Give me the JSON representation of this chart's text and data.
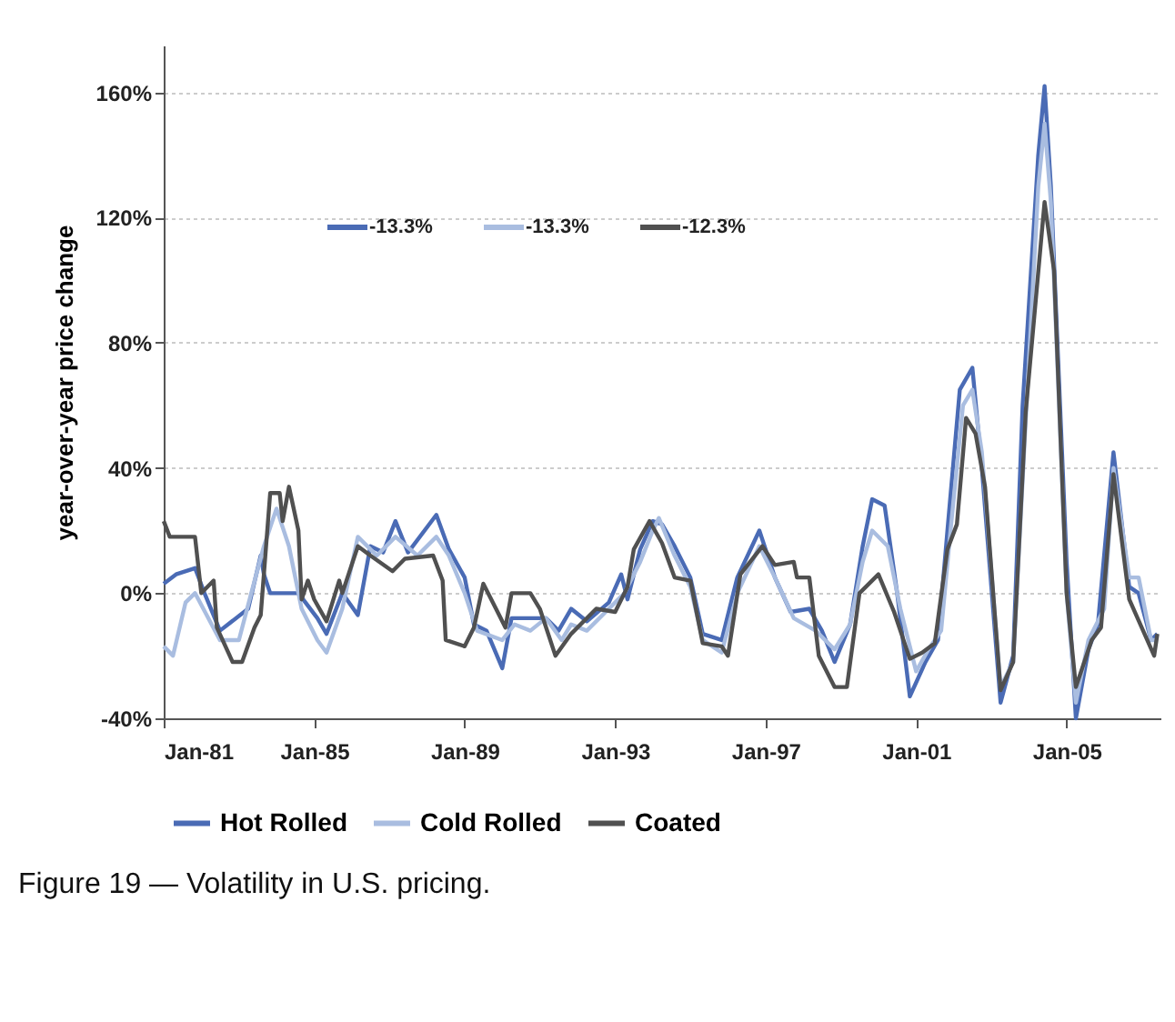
{
  "chart_data": {
    "type": "line",
    "title": "Figure 19 — Volatility in U.S. pricing.",
    "ylabel": "year-over-year price change",
    "xlim": [
      "1981-01",
      "2007-07"
    ],
    "ylim": [
      -40,
      175
    ],
    "xticks": [
      {
        "value": "1981-01",
        "label": "Jan-81"
      },
      {
        "value": "1985-01",
        "label": "Jan-85"
      },
      {
        "value": "1989-01",
        "label": "Jan-89"
      },
      {
        "value": "1993-01",
        "label": "Jan-93"
      },
      {
        "value": "1997-01",
        "label": "Jan-97"
      },
      {
        "value": "2001-01",
        "label": "Jan-01"
      },
      {
        "value": "2005-01",
        "label": "Jan-05"
      }
    ],
    "yticks": [
      {
        "value": -40,
        "label": "-40%"
      },
      {
        "value": 0,
        "label": "0%"
      },
      {
        "value": 40,
        "label": "40%"
      },
      {
        "value": 80,
        "label": "80%"
      },
      {
        "value": 120,
        "label": "120%"
      },
      {
        "value": 160,
        "label": "160%"
      }
    ],
    "grid": "y",
    "legend": "bottom",
    "line_style": "solid",
    "marker": "none",
    "annotations": [
      "-13.3%",
      "-13.3%",
      "-12.3%"
    ],
    "series": [
      {
        "name": "Hot Rolled",
        "color": "#4a6bb5",
        "x": [
          "1981-01",
          "1981-05",
          "1981-11",
          "1982-02",
          "1982-07",
          "1983-04",
          "1983-08",
          "1983-09",
          "1983-11",
          "1984-08",
          "1985-02",
          "1985-05",
          "1985-10",
          "1986-03",
          "1986-07",
          "1986-11",
          "1987-03",
          "1987-07",
          "1988-04",
          "1988-08",
          "1989-01",
          "1989-04",
          "1989-08",
          "1990-01",
          "1990-04",
          "1990-10",
          "1991-03",
          "1991-07",
          "1991-11",
          "1992-04",
          "1992-11",
          "1993-03",
          "1993-05",
          "1993-09",
          "1994-01",
          "1994-04",
          "1994-08",
          "1995-01",
          "1995-05",
          "1995-11",
          "1996-04",
          "1996-11",
          "1997-04",
          "1997-09",
          "1998-03",
          "1998-07",
          "1998-11",
          "1999-04",
          "1999-08",
          "1999-11",
          "2000-03",
          "2000-07",
          "2000-11",
          "2001-04",
          "2001-08",
          "2001-11",
          "2002-03",
          "2002-07",
          "2002-10",
          "2003-04",
          "2003-08",
          "2003-11",
          "2004-04",
          "2004-06",
          "2004-08",
          "2005-01",
          "2005-04",
          "2005-08",
          "2005-11",
          "2006-04",
          "2006-09",
          "2006-12",
          "2007-04",
          "2007-06"
        ],
        "values": [
          3,
          6,
          8,
          0,
          -12,
          -5,
          12,
          6,
          0,
          0,
          -8,
          -13,
          0,
          -7,
          15,
          13,
          23,
          13,
          25,
          14,
          5,
          -10,
          -12,
          -24,
          -8,
          -8,
          -8,
          -12,
          -5,
          -9,
          -3,
          6,
          -2,
          14,
          23,
          22,
          15,
          5,
          -13,
          -15,
          5,
          20,
          5,
          -6,
          -5,
          -12,
          -22,
          -10,
          15,
          30,
          28,
          0,
          -33,
          -22,
          -15,
          20,
          65,
          72,
          40,
          -35,
          -20,
          60,
          140,
          162,
          130,
          10,
          -40,
          -18,
          -10,
          45,
          2,
          0,
          -15,
          -13
        ]
      },
      {
        "name": "Cold Rolled",
        "color": "#a9bde0",
        "x": [
          "1981-01",
          "1981-04",
          "1981-08",
          "1981-11",
          "1982-07",
          "1983-01",
          "1983-05",
          "1983-09",
          "1984-01",
          "1984-05",
          "1984-09",
          "1985-02",
          "1985-05",
          "1985-10",
          "1986-03",
          "1986-09",
          "1987-03",
          "1987-10",
          "1988-04",
          "1988-08",
          "1989-01",
          "1989-05",
          "1990-01",
          "1990-05",
          "1990-10",
          "1991-03",
          "1991-08",
          "1991-11",
          "1992-04",
          "1992-11",
          "1993-04",
          "1993-09",
          "1994-01",
          "1994-03",
          "1994-08",
          "1995-01",
          "1995-05",
          "1995-11",
          "1996-04",
          "1996-11",
          "1997-04",
          "1997-10",
          "1998-05",
          "1998-11",
          "1999-04",
          "1999-08",
          "1999-11",
          "2000-04",
          "2000-08",
          "2001-01",
          "2001-05",
          "2001-09",
          "2001-12",
          "2002-04",
          "2002-07",
          "2002-10",
          "2003-04",
          "2003-08",
          "2003-12",
          "2004-04",
          "2004-06",
          "2004-08",
          "2005-01",
          "2005-04",
          "2005-08",
          "2006-01",
          "2006-04",
          "2006-09",
          "2006-12",
          "2007-04",
          "2007-06"
        ],
        "values": [
          -17,
          -20,
          -3,
          0,
          -15,
          -15,
          0,
          15,
          27,
          15,
          -5,
          -15,
          -19,
          -5,
          18,
          12,
          18,
          12,
          18,
          12,
          0,
          -12,
          -15,
          -10,
          -12,
          -8,
          -15,
          -10,
          -12,
          -5,
          0,
          10,
          20,
          24,
          12,
          2,
          -15,
          -19,
          0,
          15,
          5,
          -8,
          -12,
          -18,
          -10,
          10,
          20,
          15,
          -5,
          -25,
          -18,
          -12,
          20,
          60,
          65,
          45,
          -30,
          -22,
          55,
          130,
          150,
          125,
          0,
          -35,
          -15,
          -5,
          40,
          5,
          5,
          -15,
          -15
        ]
      },
      {
        "name": "Coated",
        "color": "#505050",
        "x": [
          "1981-01",
          "1981-03",
          "1981-11",
          "1982-01",
          "1982-05",
          "1982-06",
          "1982-11",
          "1983-02",
          "1983-06",
          "1983-08",
          "1983-11",
          "1984-02",
          "1984-03",
          "1984-05",
          "1984-08",
          "1984-09",
          "1984-11",
          "1985-01",
          "1985-05",
          "1985-09",
          "1985-10",
          "1986-03",
          "1986-07",
          "1987-02",
          "1987-06",
          "1988-03",
          "1988-06",
          "1988-07",
          "1989-01",
          "1989-04",
          "1989-07",
          "1989-11",
          "1990-02",
          "1990-04",
          "1990-10",
          "1991-01",
          "1991-06",
          "1991-11",
          "1992-07",
          "1993-01",
          "1993-05",
          "1993-07",
          "1993-12",
          "1994-04",
          "1994-08",
          "1995-01",
          "1995-05",
          "1995-11",
          "1996-01",
          "1996-05",
          "1996-12",
          "1997-04",
          "1997-10",
          "1997-11",
          "1998-03",
          "1998-06",
          "1998-11",
          "1999-03",
          "1999-07",
          "2000-01",
          "2000-06",
          "2000-11",
          "2001-03",
          "2001-07",
          "2001-11",
          "2002-02",
          "2002-05",
          "2002-08",
          "2002-11",
          "2003-04",
          "2003-08",
          "2003-12",
          "2004-06",
          "2004-09",
          "2005-01",
          "2005-04",
          "2005-09",
          "2005-12",
          "2006-04",
          "2006-09",
          "2007-05",
          "2007-06"
        ],
        "values": [
          23,
          18,
          18,
          0,
          4,
          -11,
          -22,
          -22,
          -11,
          -7,
          32,
          32,
          23,
          34,
          20,
          -2,
          4,
          -2,
          -9,
          4,
          0,
          15,
          12,
          7,
          11,
          12,
          4,
          -15,
          -17,
          -11,
          3,
          -5,
          -11,
          0,
          0,
          -5,
          -20,
          -13,
          -5,
          -6,
          2,
          14,
          23,
          16,
          5,
          4,
          -16,
          -17,
          -20,
          6,
          15,
          9,
          10,
          5,
          5,
          -20,
          -30,
          -30,
          0,
          6,
          -6,
          -21,
          -19,
          -16,
          14,
          22,
          56,
          51,
          34,
          -31,
          -22,
          58,
          125,
          103,
          0,
          -30,
          -15,
          -11,
          38,
          -2,
          -20,
          -13
        ]
      }
    ]
  }
}
